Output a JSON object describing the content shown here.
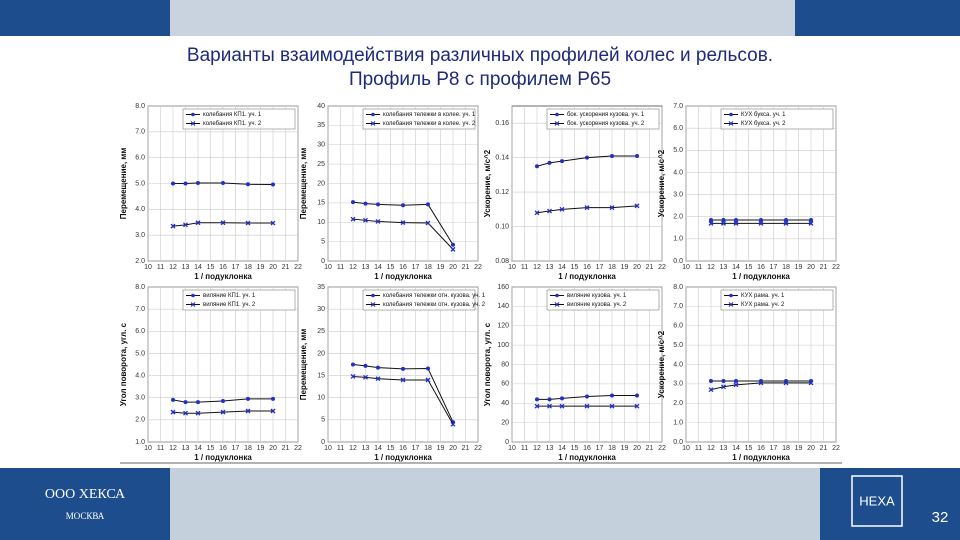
{
  "slide": {
    "title_lines": [
      "Варианты взаимодействия различных профилей колес и рельсов.",
      "Профиль Р8 с профилем Р65"
    ],
    "company": "ООО ХЕКСА",
    "city": "МОСКВА",
    "logo": "HEXA",
    "page_number": "32"
  },
  "chart_data": [
    {
      "type": "line",
      "y_label": "Перемещение, мм",
      "x_label": "1 / подуклонка",
      "x": [
        12,
        13,
        14,
        16,
        18,
        20
      ],
      "xlim": [
        10,
        22
      ],
      "xticks": [
        10,
        11,
        12,
        13,
        14,
        15,
        16,
        17,
        18,
        19,
        20,
        21,
        22
      ],
      "ylim": [
        2,
        8
      ],
      "yticks": [
        {
          "value": 2,
          "label": "2.0"
        },
        {
          "value": 3,
          "label": "3.0"
        },
        {
          "value": 4,
          "label": "4.0"
        },
        {
          "value": 5,
          "label": "5.0"
        },
        {
          "value": 6,
          "label": "6.0"
        },
        {
          "value": 7,
          "label": "7.0"
        },
        {
          "value": 8,
          "label": "8.0"
        }
      ],
      "grid": true,
      "legend": "upper right",
      "series": [
        {
          "name": "колебания КП1. уч. 1",
          "color": "#1f2fc8",
          "marker": "circle",
          "values": [
            5.0,
            5.0,
            5.02,
            5.02,
            4.97,
            4.96
          ]
        },
        {
          "name": "колебания КП1. уч. 2",
          "color": "#1f2fc8",
          "marker": "x",
          "values": [
            3.35,
            3.4,
            3.48,
            3.48,
            3.47,
            3.47
          ]
        }
      ]
    },
    {
      "type": "line",
      "y_label": "Перемещение, мм",
      "x_label": "1 / подуклонка",
      "x": [
        12,
        13,
        14,
        16,
        18,
        20
      ],
      "xlim": [
        10,
        22
      ],
      "xticks": [
        10,
        11,
        12,
        13,
        14,
        15,
        16,
        17,
        18,
        19,
        20,
        21,
        22
      ],
      "ylim": [
        0,
        40
      ],
      "yticks": [
        0,
        5,
        10,
        15,
        20,
        25,
        30,
        35,
        40
      ],
      "grid": true,
      "legend": "upper right",
      "series": [
        {
          "name": "колебания тележки в колее. уч. 1",
          "color": "#1f2fc8",
          "marker": "circle",
          "values": [
            15.2,
            14.8,
            14.6,
            14.4,
            14.6,
            4.2
          ]
        },
        {
          "name": "колебания тележки в колее. уч. 2",
          "color": "#1f2fc8",
          "marker": "x",
          "values": [
            10.8,
            10.5,
            10.2,
            9.9,
            9.8,
            3.0
          ]
        }
      ]
    },
    {
      "type": "line",
      "y_label": "Ускорение, м/с^2",
      "x_label": "1 / подуклонка",
      "x": [
        12,
        13,
        14,
        16,
        18,
        20
      ],
      "xlim": [
        10,
        22
      ],
      "xticks": [
        10,
        11,
        12,
        13,
        14,
        15,
        16,
        17,
        18,
        19,
        20,
        21,
        22
      ],
      "ylim": [
        0.08,
        0.17
      ],
      "yticks": [
        0.08,
        {
          "value": 0.1,
          "label": "0.10"
        },
        0.12,
        0.14,
        0.16
      ],
      "grid": true,
      "legend": "upper right",
      "series": [
        {
          "name": "бок. ускорения кузова. уч. 1",
          "color": "#1f2fc8",
          "marker": "circle",
          "values": [
            0.135,
            0.137,
            0.138,
            0.14,
            0.141,
            0.141
          ]
        },
        {
          "name": "бок. ускорения кузова. уч. 2",
          "color": "#1f2fc8",
          "marker": "x",
          "values": [
            0.108,
            0.109,
            0.11,
            0.111,
            0.111,
            0.112
          ]
        }
      ]
    },
    {
      "type": "line",
      "y_label": "Ускорение, м/с^2",
      "x_label": "1 / подуклонка",
      "x": [
        12,
        13,
        14,
        16,
        18,
        20
      ],
      "xlim": [
        10,
        22
      ],
      "xticks": [
        10,
        11,
        12,
        13,
        14,
        15,
        16,
        17,
        18,
        19,
        20,
        21,
        22
      ],
      "ylim": [
        0,
        7
      ],
      "yticks": [
        {
          "value": 0,
          "label": "0.0"
        },
        {
          "value": 1,
          "label": "1.0"
        },
        {
          "value": 2,
          "label": "2.0"
        },
        {
          "value": 3,
          "label": "3.0"
        },
        {
          "value": 4,
          "label": "4.0"
        },
        {
          "value": 5,
          "label": "5.0"
        },
        {
          "value": 6,
          "label": "6.0"
        },
        {
          "value": 7,
          "label": "7.0"
        }
      ],
      "grid": true,
      "legend": "upper right",
      "series": [
        {
          "name": "КУХ букса. уч. 1",
          "color": "#1f2fc8",
          "marker": "circle",
          "values": [
            1.85,
            1.85,
            1.85,
            1.85,
            1.85,
            1.85
          ]
        },
        {
          "name": "КУХ букса. уч. 2",
          "color": "#1f2fc8",
          "marker": "x",
          "values": [
            1.7,
            1.7,
            1.7,
            1.7,
            1.7,
            1.7
          ]
        }
      ]
    },
    {
      "type": "line",
      "y_label": "Угол поворота, угл. с",
      "x_label": "1 / подуклонка",
      "x": [
        12,
        13,
        14,
        16,
        18,
        20
      ],
      "xlim": [
        10,
        22
      ],
      "xticks": [
        10,
        11,
        12,
        13,
        14,
        15,
        16,
        17,
        18,
        19,
        20,
        21,
        22
      ],
      "ylim": [
        1,
        8
      ],
      "yticks": [
        {
          "value": 1,
          "label": "1.0"
        },
        {
          "value": 2,
          "label": "2.0"
        },
        {
          "value": 3,
          "label": "3.0"
        },
        {
          "value": 4,
          "label": "4.0"
        },
        {
          "value": 5,
          "label": "5.0"
        },
        {
          "value": 6,
          "label": "6.0"
        },
        {
          "value": 7,
          "label": "7.0"
        },
        {
          "value": 8,
          "label": "8.0"
        }
      ],
      "grid": true,
      "legend": "upper right",
      "series": [
        {
          "name": "виляние КП1. уч. 1",
          "color": "#1f2fc8",
          "marker": "circle",
          "values": [
            2.9,
            2.8,
            2.8,
            2.85,
            2.95,
            2.95
          ]
        },
        {
          "name": "виляние КП1. уч. 2",
          "color": "#1f2fc8",
          "marker": "x",
          "values": [
            2.35,
            2.3,
            2.3,
            2.35,
            2.4,
            2.4
          ]
        }
      ]
    },
    {
      "type": "line",
      "y_label": "Перемещение, мм",
      "x_label": "1 / подуклонка",
      "x": [
        12,
        13,
        14,
        16,
        18,
        20
      ],
      "xlim": [
        10,
        22
      ],
      "xticks": [
        10,
        11,
        12,
        13,
        14,
        15,
        16,
        17,
        18,
        19,
        20,
        21,
        22
      ],
      "ylim": [
        0,
        35
      ],
      "yticks": [
        0,
        5,
        10,
        15,
        20,
        25,
        30,
        35
      ],
      "grid": true,
      "legend": "upper right",
      "series": [
        {
          "name": "колебания тележки отн. кузова. уч. 1",
          "color": "#1f2fc8",
          "marker": "circle",
          "values": [
            17.5,
            17.2,
            16.8,
            16.5,
            16.6,
            4.5
          ]
        },
        {
          "name": "колебания тележки отн. кузова. уч. 2",
          "color": "#1f2fc8",
          "marker": "x",
          "values": [
            14.8,
            14.6,
            14.3,
            14.0,
            14.0,
            4.0
          ]
        }
      ]
    },
    {
      "type": "line",
      "y_label": "Угол поворота, угл. с",
      "x_label": "1 / подуклонка",
      "x": [
        12,
        13,
        14,
        16,
        18,
        20
      ],
      "xlim": [
        10,
        22
      ],
      "xticks": [
        10,
        11,
        12,
        13,
        14,
        15,
        16,
        17,
        18,
        19,
        20,
        21,
        22
      ],
      "ylim": [
        0,
        160
      ],
      "yticks": [
        0,
        20,
        40,
        60,
        80,
        100,
        120,
        140,
        160
      ],
      "grid": true,
      "legend": "upper right",
      "series": [
        {
          "name": "виляние кузова. уч. 1",
          "color": "#1f2fc8",
          "marker": "circle",
          "values": [
            44,
            44,
            45,
            47,
            48,
            48
          ]
        },
        {
          "name": "виляние кузова. уч. 2",
          "color": "#1f2fc8",
          "marker": "x",
          "values": [
            37,
            37,
            37,
            37,
            37,
            37
          ]
        }
      ]
    },
    {
      "type": "line",
      "y_label": "Ускорение, м/с^2",
      "x_label": "1 / подуклонка",
      "x": [
        12,
        13,
        14,
        16,
        18,
        20
      ],
      "xlim": [
        10,
        22
      ],
      "xticks": [
        10,
        11,
        12,
        13,
        14,
        15,
        16,
        17,
        18,
        19,
        20,
        21,
        22
      ],
      "ylim": [
        0,
        8
      ],
      "yticks": [
        {
          "value": 0,
          "label": "0.0"
        },
        {
          "value": 1,
          "label": "1.0"
        },
        {
          "value": 2,
          "label": "2.0"
        },
        {
          "value": 3,
          "label": "3.0"
        },
        {
          "value": 4,
          "label": "4.0"
        },
        {
          "value": 5,
          "label": "5.0"
        },
        {
          "value": 6,
          "label": "6.0"
        },
        {
          "value": 7,
          "label": "7.0"
        },
        {
          "value": 8,
          "label": "8.0"
        }
      ],
      "grid": true,
      "legend": "upper right",
      "series": [
        {
          "name": "КУХ рама. уч. 1",
          "color": "#1f2fc8",
          "marker": "circle",
          "values": [
            3.15,
            3.15,
            3.15,
            3.15,
            3.15,
            3.15
          ]
        },
        {
          "name": "КУХ рама. уч. 2",
          "color": "#1f2fc8",
          "marker": "x",
          "values": [
            2.7,
            2.85,
            2.95,
            3.05,
            3.05,
            3.05
          ]
        }
      ]
    }
  ]
}
